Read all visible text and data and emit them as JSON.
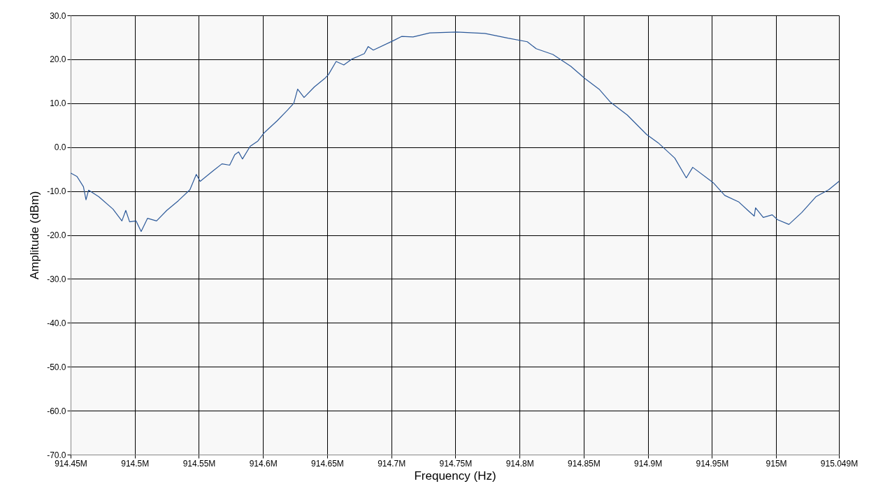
{
  "chart_data": {
    "type": "line",
    "xlabel": "Frequency (Hz)",
    "ylabel": "Amplitude (dBm)",
    "x": [
      914450000,
      914455000,
      914460000,
      914462000,
      914464000,
      914472000,
      914483000,
      914490000,
      914493000,
      914496000,
      914501000,
      914505000,
      914510000,
      914517000,
      914525000,
      914534000,
      914543000,
      914548000,
      914551000,
      914561000,
      914568000,
      914574000,
      914578000,
      914581000,
      914584000,
      914590000,
      914596000,
      914601000,
      914611000,
      914619000,
      914624000,
      914627000,
      914632000,
      914640000,
      914648000,
      914651000,
      914657000,
      914663000,
      914669000,
      914679000,
      914682000,
      914686000,
      914702000,
      914708000,
      914717000,
      914730000,
      914751000,
      914773000,
      914791000,
      914806000,
      914813000,
      914826000,
      914840000,
      914851000,
      914862000,
      914871000,
      914884000,
      914899000,
      914908000,
      914921000,
      914930000,
      914935000,
      914951000,
      914960000,
      914971000,
      914978000,
      914983000,
      914984000,
      914990000,
      914997000,
      915001000,
      915010000,
      915020000,
      915031000,
      915041000,
      915049000
    ],
    "series": [
      {
        "color": "#2d5a9a",
        "values": [
          -5.9,
          -6.7,
          -9.0,
          -12.0,
          -9.8,
          -11.3,
          -14.1,
          -16.8,
          -14.4,
          -17.0,
          -16.8,
          -19.2,
          -16.2,
          -16.8,
          -14.4,
          -12.2,
          -9.7,
          -6.2,
          -7.8,
          -5.4,
          -3.8,
          -4.1,
          -1.7,
          -1.1,
          -2.7,
          0.2,
          1.4,
          3.3,
          6.0,
          8.4,
          10.0,
          13.2,
          11.3,
          13.7,
          15.6,
          16.5,
          19.5,
          18.7,
          20.0,
          21.3,
          22.9,
          22.1,
          24.3,
          25.2,
          25.1,
          26.0,
          26.2,
          25.9,
          24.8,
          24.0,
          22.4,
          21.1,
          18.4,
          15.6,
          13.2,
          10.2,
          7.3,
          2.9,
          1.0,
          -2.5,
          -7.0,
          -4.6,
          -8.1,
          -11.0,
          -12.5,
          -14.4,
          -15.7,
          -13.8,
          -16.0,
          -15.4,
          -16.5,
          -17.6,
          -14.9,
          -11.3,
          -9.7,
          -7.8
        ]
      }
    ],
    "xlim": [
      914450000,
      915049000
    ],
    "xticks": [
      {
        "value": 914450000,
        "label": "914.45M"
      },
      {
        "value": 914500000,
        "label": "914.5M"
      },
      {
        "value": 914550000,
        "label": "914.55M"
      },
      {
        "value": 914600000,
        "label": "914.6M"
      },
      {
        "value": 914650000,
        "label": "914.65M"
      },
      {
        "value": 914700000,
        "label": "914.7M"
      },
      {
        "value": 914750000,
        "label": "914.75M"
      },
      {
        "value": 914800000,
        "label": "914.8M"
      },
      {
        "value": 914850000,
        "label": "914.85M"
      },
      {
        "value": 914900000,
        "label": "914.9M"
      },
      {
        "value": 914950000,
        "label": "914.95M"
      },
      {
        "value": 915000000,
        "label": "915M"
      },
      {
        "value": 915049000,
        "label": "915.049M"
      }
    ],
    "ylim": [
      -70,
      30
    ],
    "yticks": [
      {
        "value": -70,
        "label": "-70.0"
      },
      {
        "value": -60,
        "label": "-60.0"
      },
      {
        "value": -50,
        "label": "-50.0"
      },
      {
        "value": -40,
        "label": "-40.0"
      },
      {
        "value": -30,
        "label": "-30.0"
      },
      {
        "value": -20,
        "label": "-20.0"
      },
      {
        "value": -10,
        "label": "-10.0"
      },
      {
        "value": 0,
        "label": "0.0"
      },
      {
        "value": 10,
        "label": "10.0"
      },
      {
        "value": 20,
        "label": "20.0"
      },
      {
        "value": 30,
        "label": "30.0"
      }
    ],
    "grid": true
  }
}
